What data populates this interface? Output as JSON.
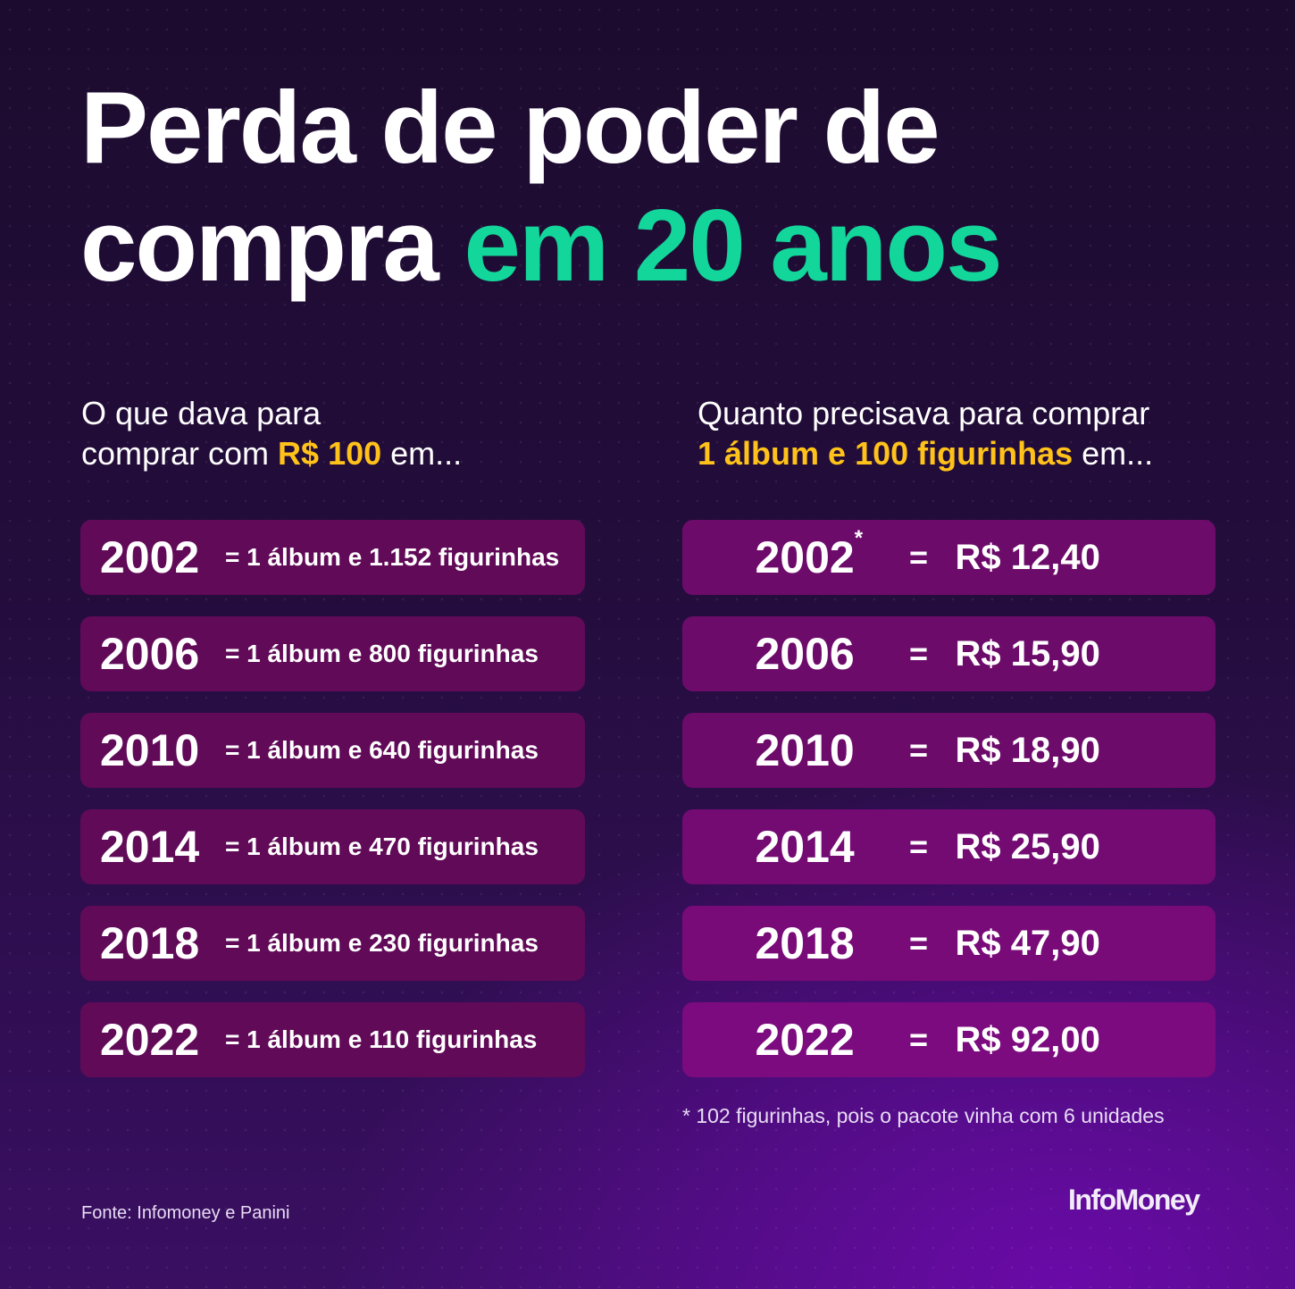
{
  "title": {
    "line1": "Perda de poder de",
    "line2_prefix": "compra ",
    "line2_accent": "em 20 anos"
  },
  "left": {
    "heading_line1": "O que dava para",
    "heading_line2_prefix": "comprar com ",
    "heading_highlight": "R$ 100",
    "heading_suffix": " em...",
    "rows": [
      {
        "year": "2002",
        "text": "= 1 álbum e 1.152 figurinhas"
      },
      {
        "year": "2006",
        "text": "= 1 álbum e 800 figurinhas"
      },
      {
        "year": "2010",
        "text": "= 1 álbum e 640 figurinhas"
      },
      {
        "year": "2014",
        "text": "= 1 álbum e 470 figurinhas"
      },
      {
        "year": "2018",
        "text": "= 1 álbum e 230 figurinhas"
      },
      {
        "year": "2022",
        "text": "= 1 álbum e 110 figurinhas"
      }
    ]
  },
  "right": {
    "heading_line1": "Quanto precisava para comprar",
    "heading_highlight": "1 álbum e 100 figurinhas",
    "heading_suffix": " em...",
    "rows": [
      {
        "year": "2002",
        "mark": "*",
        "eq": "=",
        "price": "R$ 12,40"
      },
      {
        "year": "2006",
        "mark": "",
        "eq": "=",
        "price": "R$ 15,90"
      },
      {
        "year": "2010",
        "mark": "",
        "eq": "=",
        "price": "R$ 18,90"
      },
      {
        "year": "2014",
        "mark": "",
        "eq": "=",
        "price": "R$ 25,90"
      },
      {
        "year": "2018",
        "mark": "",
        "eq": "=",
        "price": "R$ 47,90"
      },
      {
        "year": "2022",
        "mark": "",
        "eq": "=",
        "price": "R$ 92,00"
      }
    ]
  },
  "footnote": "* 102 figurinhas, pois o pacote vinha com 6 unidades",
  "source": "Fonte: Infomoney e Panini",
  "logo": "InfoMoney",
  "colors": {
    "accent_green": "#13d69a",
    "highlight_yellow": "#ffc21a",
    "row_left": "#610a58",
    "row_right": "#6d0b6a"
  }
}
